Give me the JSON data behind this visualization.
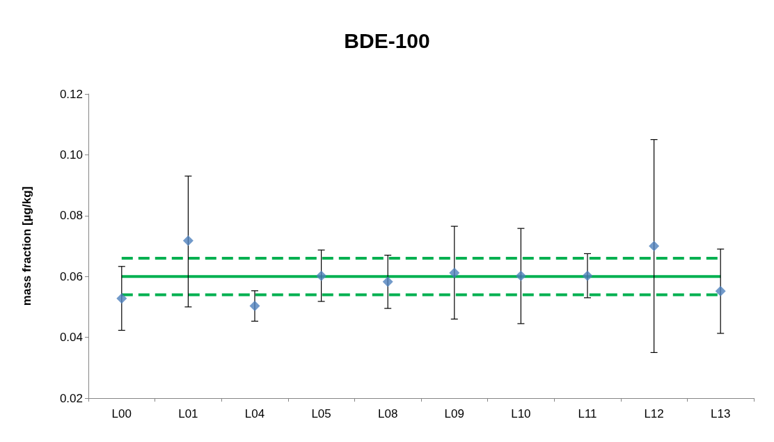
{
  "chart_data": {
    "type": "scatter",
    "title": "BDE-100",
    "ylabel": "mass fraction [µg/kg]",
    "categories": [
      "L00",
      "L01",
      "L04",
      "L05",
      "L08",
      "L09",
      "L10",
      "L11",
      "L12",
      "L13"
    ],
    "series": [
      {
        "color": "#4f81bd",
        "values": [
          0.0528,
          0.0718,
          0.0503,
          0.0602,
          0.0583,
          0.0612,
          0.0602,
          0.0602,
          0.07,
          0.0552
        ],
        "errors": [
          [
            0.0423,
            0.0633
          ],
          [
            0.05,
            0.093
          ],
          [
            0.0453,
            0.0553
          ],
          [
            0.0518,
            0.0687
          ],
          [
            0.0495,
            0.067
          ],
          [
            0.046,
            0.0765
          ],
          [
            0.0445,
            0.0758
          ],
          [
            0.053,
            0.0675
          ],
          [
            0.035,
            0.105
          ],
          [
            0.0413,
            0.069
          ]
        ]
      }
    ],
    "marker": "diamond",
    "ylim": [
      0.02,
      0.12
    ],
    "yticks": [
      0.02,
      0.04,
      0.06,
      0.08,
      {
        "value": 0.1,
        "label": "0.10"
      },
      0.12
    ],
    "ref_lines": [
      {
        "axis": "y",
        "value": 0.06,
        "color": "#00b050",
        "line_style": "solid"
      },
      {
        "axis": "y",
        "value": 0.066,
        "color": "#00b050",
        "line_style": "dashed"
      },
      {
        "axis": "y",
        "value": 0.054,
        "color": "#00b050",
        "line_style": "dashed"
      }
    ],
    "grid": false
  }
}
